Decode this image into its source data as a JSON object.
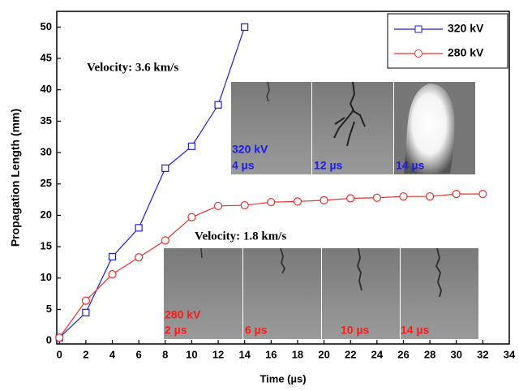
{
  "chart_data": {
    "type": "line",
    "xlabel": "Time (µs)",
    "ylabel": "Propagation Length (mm)",
    "xlim": [
      -0.2,
      34
    ],
    "xticks": [
      0,
      2,
      4,
      6,
      8,
      10,
      12,
      14,
      16,
      18,
      20,
      22,
      24,
      26,
      28,
      30,
      32,
      34
    ],
    "ylim": [
      -0.5,
      52.5
    ],
    "yticks": [
      0,
      5,
      10,
      15,
      20,
      25,
      30,
      35,
      40,
      45,
      50
    ],
    "legend": "upper right",
    "series": [
      {
        "name": "320 kV",
        "color": "#1f1fd6",
        "marker": "square",
        "x": [
          0,
          2,
          4,
          6,
          8,
          10,
          12,
          14
        ],
        "values": [
          0.5,
          4.5,
          13.4,
          18,
          27.5,
          31,
          37.6,
          50
        ]
      },
      {
        "name": "280 kV",
        "color": "#e8322b",
        "marker": "circle",
        "x": [
          0,
          2,
          4,
          6,
          8,
          10,
          12,
          14,
          16,
          18,
          20,
          22,
          24,
          26,
          28,
          30,
          32
        ],
        "values": [
          0.5,
          6.4,
          10.6,
          13.3,
          16,
          19.7,
          21.5,
          21.6,
          22.1,
          22.2,
          22.4,
          22.7,
          22.8,
          23,
          23,
          23.4,
          23.4
        ]
      }
    ],
    "annotations": [
      "Velocity: 3.6 km/s",
      "Velocity: 1.8 km/s"
    ],
    "insets": [
      {
        "label": "320 kV",
        "color": "#1a1aff",
        "frames": [
          "4 µs",
          "12 µs",
          "14 µs"
        ]
      },
      {
        "label": "280 kV",
        "color": "#ff1a1a",
        "frames": [
          "2 µs",
          "6 µs",
          "10 µs",
          "14 µs"
        ]
      }
    ]
  }
}
